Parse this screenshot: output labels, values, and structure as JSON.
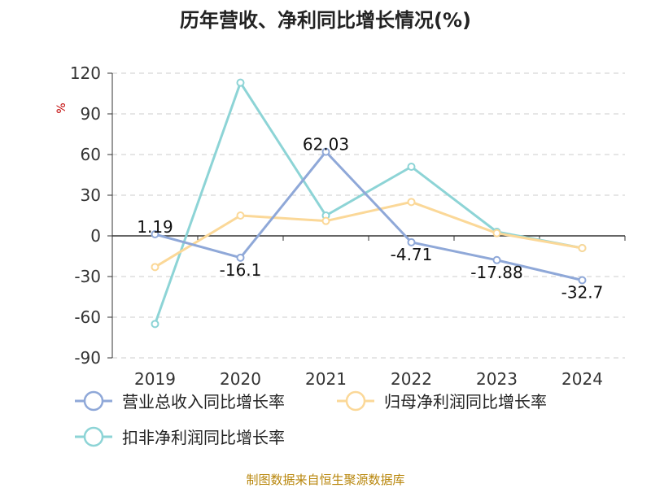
{
  "chart_data": {
    "type": "line",
    "title": "历年营收、净利同比增长情况(%)",
    "ylabel": "%",
    "xlabel": "",
    "categories": [
      "2019",
      "2020",
      "2021",
      "2022",
      "2023",
      "2024"
    ],
    "ylim": [
      -90,
      120
    ],
    "yticks": [
      120,
      90,
      60,
      30,
      0,
      -30,
      -60,
      -90
    ],
    "grid": true,
    "legend_position": "bottom",
    "series": [
      {
        "name": "营业总收入同比增长率",
        "color": "#8fa8d8",
        "values": [
          1.19,
          -16.1,
          62.03,
          -4.71,
          -17.88,
          -32.7
        ],
        "labels": [
          "1.19",
          "-16.1",
          "62.03",
          "-4.71",
          "-17.88",
          "-32.7"
        ]
      },
      {
        "name": "归母净利润同比增长率",
        "color": "#fbd898",
        "values": [
          -23,
          15,
          11,
          25,
          2,
          -9
        ],
        "labels": []
      },
      {
        "name": "扣非净利润同比增长率",
        "color": "#8dd4d6",
        "values": [
          -65,
          113,
          15,
          51,
          3,
          -9
        ],
        "labels": []
      }
    ],
    "source": "制图数据来自恒生聚源数据库"
  }
}
